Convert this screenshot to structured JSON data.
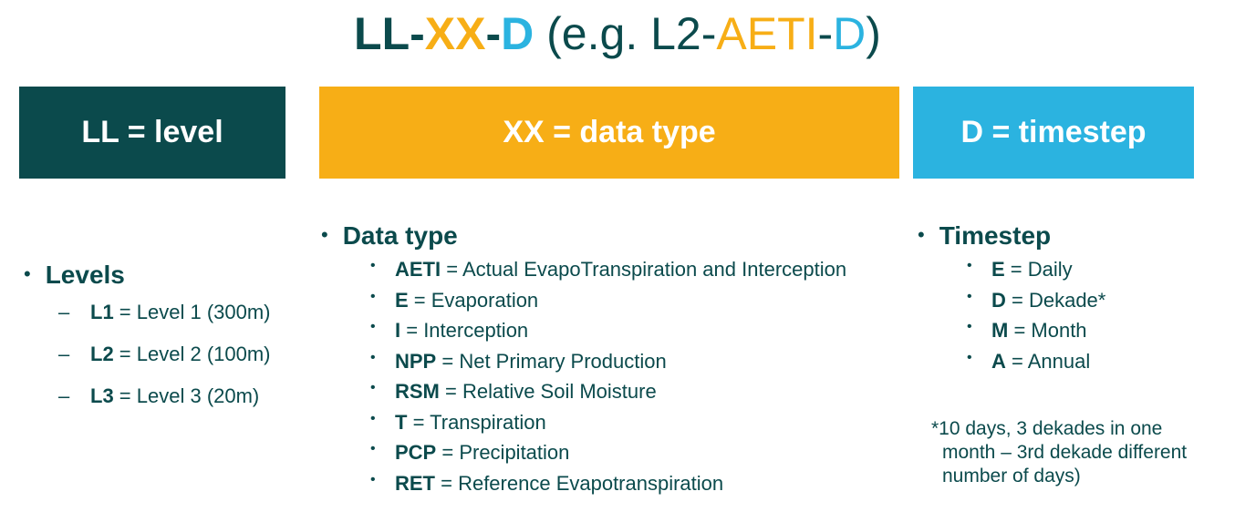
{
  "title": {
    "ll": "LL",
    "dash1": "-",
    "xx": "XX",
    "dash2": "-",
    "d": "D",
    "eg_prefix": " (e.g. L2-",
    "eg_xx": "AETI",
    "eg_dash": "-",
    "eg_d": "D",
    "eg_suffix": ")"
  },
  "colors": {
    "level": "#0b4a4c",
    "data_type": "#f7ae16",
    "timestep": "#2bb3e0"
  },
  "boxes": {
    "level": "LL = level",
    "data_type": "XX = data type",
    "timestep": "D = timestep"
  },
  "levels": {
    "heading": "Levels",
    "items": [
      {
        "code": "L1",
        "desc": " = Level 1 (300m)"
      },
      {
        "code": "L2",
        "desc": " = Level 2 (100m)"
      },
      {
        "code": "L3",
        "desc": " = Level 3 (20m)"
      }
    ]
  },
  "data_types": {
    "heading": "Data type",
    "items": [
      {
        "code": "AETI",
        "desc": " = Actual EvapoTranspiration and Interception"
      },
      {
        "code": "E",
        "desc": " = Evaporation"
      },
      {
        "code": "I",
        "desc": " = Interception"
      },
      {
        "code": "NPP",
        "desc": " = Net Primary Production"
      },
      {
        "code": "RSM",
        "desc": " = Relative Soil Moisture"
      },
      {
        "code": "T",
        "desc": " = Transpiration"
      },
      {
        "code": "PCP",
        "desc": " = Precipitation"
      },
      {
        "code": "RET",
        "desc": " = Reference Evapotranspiration"
      }
    ]
  },
  "timesteps": {
    "heading": "Timestep",
    "items": [
      {
        "code": "E",
        "desc": " = Daily"
      },
      {
        "code": "D",
        "desc": " = Dekade*"
      },
      {
        "code": "M",
        "desc": " = Month"
      },
      {
        "code": "A",
        "desc": " = Annual"
      }
    ],
    "note_line1": "*10 days, 3 dekades in one",
    "note_line2": "month – 3rd dekade different",
    "note_line3": "number of days)"
  }
}
